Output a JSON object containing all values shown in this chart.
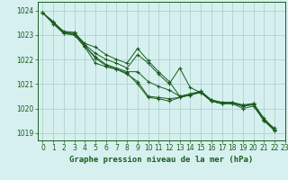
{
  "title": "Graphe pression niveau de la mer (hPa)",
  "bg_color": "#d6f0f0",
  "line_color": "#1a5c1a",
  "grid_color": "#a8cccc",
  "xlim": [
    -0.5,
    23
  ],
  "ylim": [
    1018.7,
    1024.35
  ],
  "yticks": [
    1019,
    1020,
    1021,
    1022,
    1023,
    1024
  ],
  "xticks": [
    0,
    1,
    2,
    3,
    4,
    5,
    6,
    7,
    8,
    9,
    10,
    11,
    12,
    13,
    14,
    15,
    16,
    17,
    18,
    19,
    20,
    21,
    22,
    23
  ],
  "series": [
    [
      1023.9,
      1023.55,
      1023.1,
      1023.1,
      1022.65,
      1022.5,
      1022.2,
      1022.0,
      1021.85,
      1022.45,
      1021.95,
      1021.5,
      1021.1,
      1020.5,
      1020.6,
      1020.7,
      1020.3,
      1020.2,
      1020.2,
      1020.1,
      1020.2,
      1019.5,
      1019.2
    ],
    [
      1023.9,
      1023.5,
      1023.15,
      1023.1,
      1022.55,
      1022.1,
      1021.8,
      1021.65,
      1021.5,
      1021.5,
      1021.1,
      1020.9,
      1020.75,
      1020.5,
      1020.55,
      1020.7,
      1020.35,
      1020.25,
      1020.25,
      1020.15,
      1020.2,
      1019.6,
      1019.15
    ],
    [
      1023.9,
      1023.45,
      1023.05,
      1023.0,
      1022.5,
      1021.85,
      1021.7,
      1021.6,
      1021.4,
      1021.1,
      1020.5,
      1020.45,
      1020.4,
      1020.45,
      1020.55,
      1020.7,
      1020.35,
      1020.25,
      1020.25,
      1020.1,
      1020.15,
      1019.55,
      1019.1
    ],
    [
      1023.9,
      1023.5,
      1023.1,
      1023.05,
      1022.6,
      1022.25,
      1022.0,
      1021.85,
      1021.65,
      1022.2,
      1021.85,
      1021.4,
      1021.0,
      1021.65,
      1020.85,
      1020.65,
      1020.3,
      1020.2,
      1020.25,
      1020.1,
      1020.2,
      1019.5,
      1019.12
    ],
    [
      1023.9,
      1023.5,
      1023.1,
      1023.0,
      1022.55,
      1022.05,
      1021.75,
      1021.6,
      1021.45,
      1021.0,
      1020.45,
      1020.4,
      1020.3,
      1020.45,
      1020.55,
      1020.65,
      1020.3,
      1020.2,
      1020.2,
      1020.0,
      1020.1,
      1019.5,
      1019.1
    ]
  ],
  "title_fontsize": 6.5,
  "tick_fontsize": 5.5
}
